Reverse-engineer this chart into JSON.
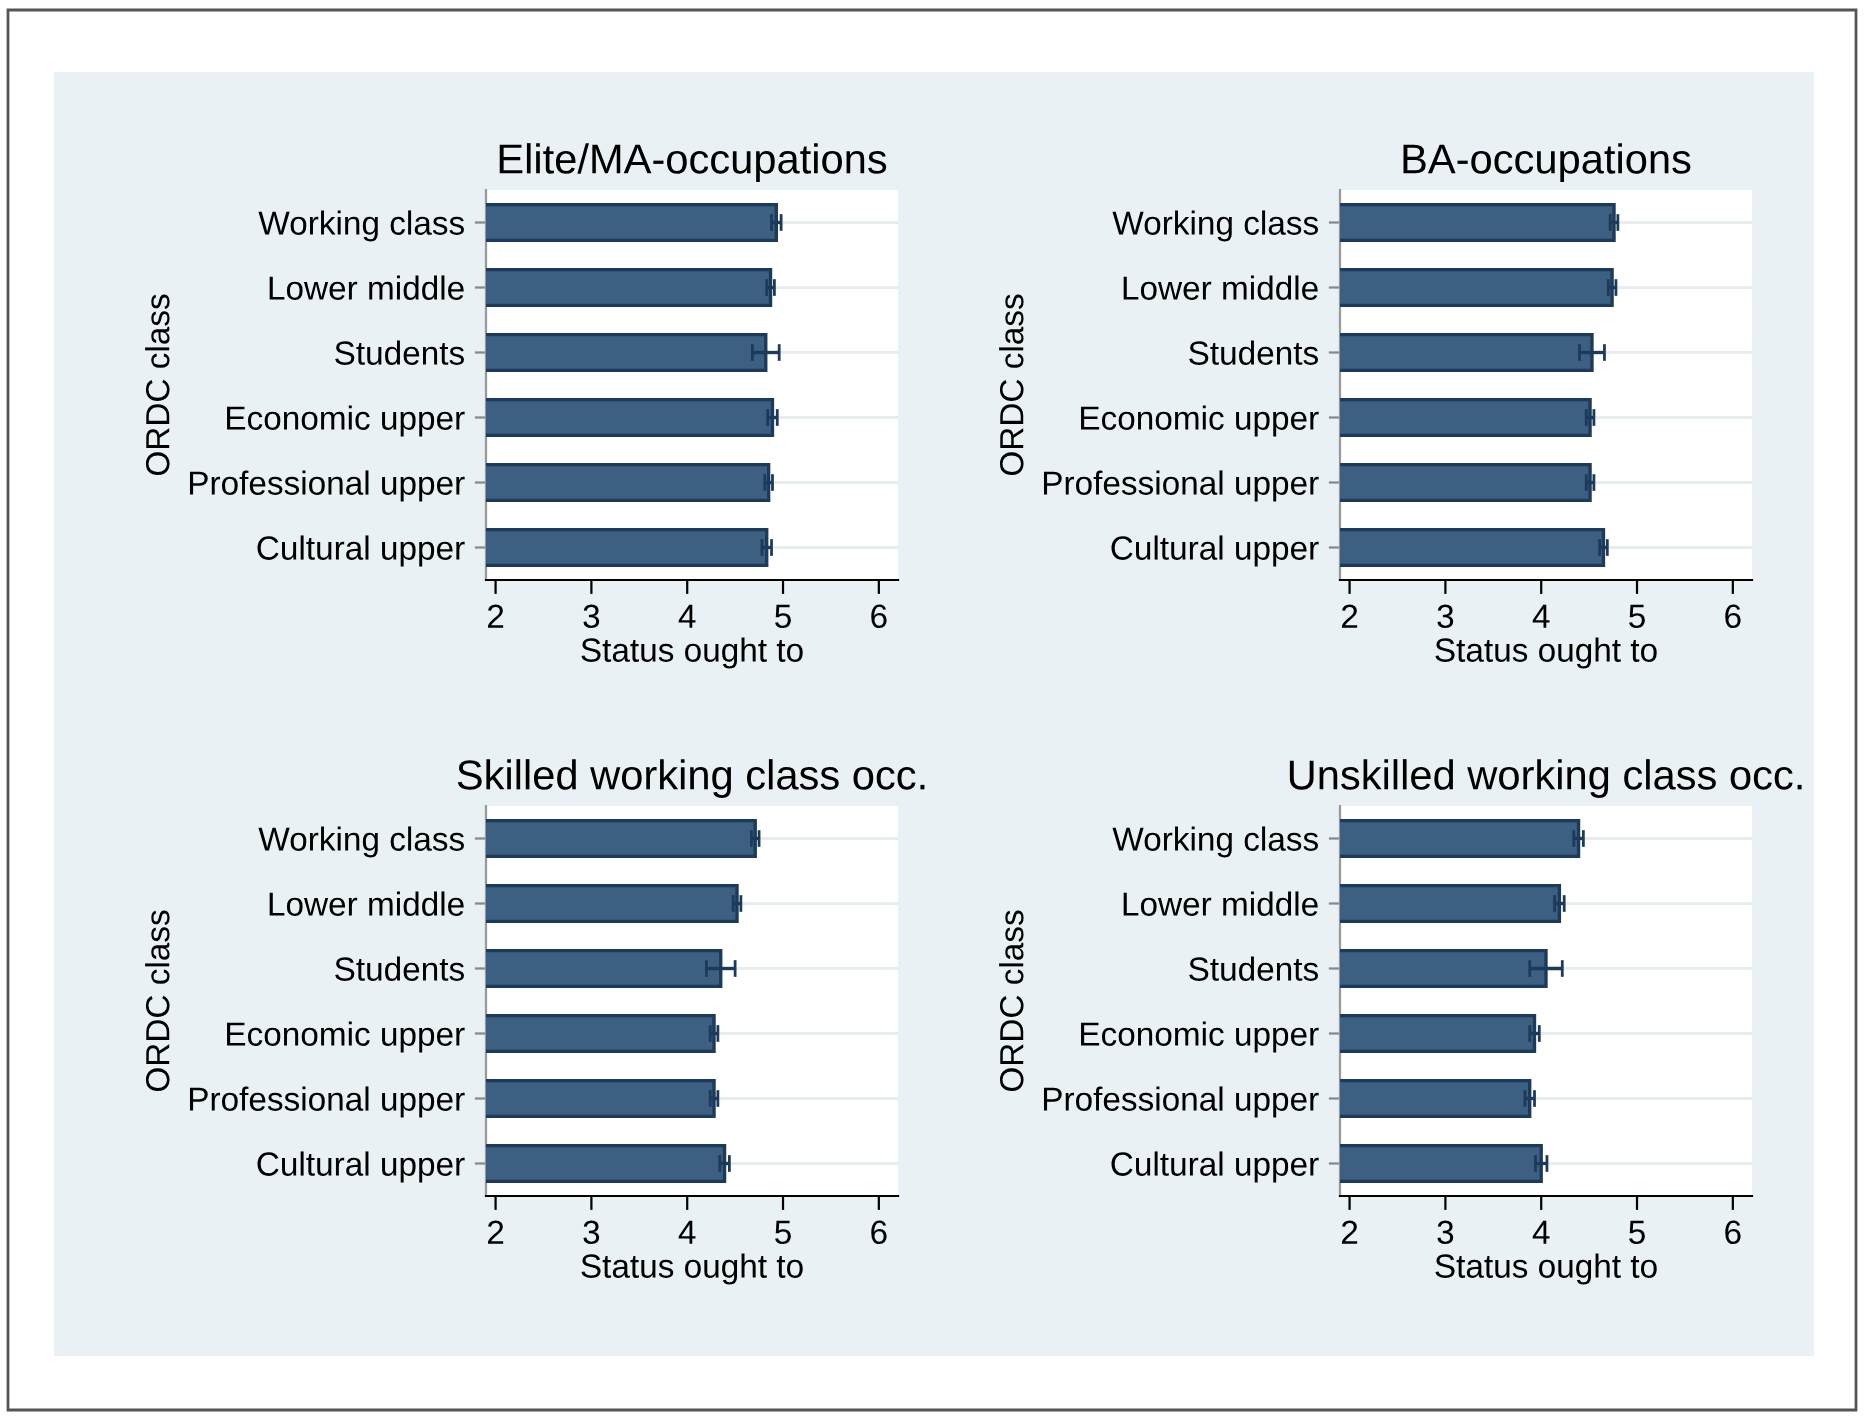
{
  "chart_data": [
    {
      "type": "bar",
      "orientation": "horizontal",
      "title": "Elite/MA-occupations",
      "xlabel": "Status ought to",
      "ylabel": "ORDC class",
      "categories": [
        "Working class",
        "Lower middle",
        "Students",
        "Economic upper",
        "Professional upper",
        "Cultural upper"
      ],
      "values": [
        4.93,
        4.87,
        4.82,
        4.89,
        4.85,
        4.83
      ],
      "errors": [
        0.05,
        0.04,
        0.14,
        0.05,
        0.04,
        0.05
      ],
      "color": "#3d5f81",
      "xlim": [
        1.9,
        6.2
      ],
      "xticks": [
        2,
        3,
        4,
        5,
        6
      ],
      "grid": "y"
    },
    {
      "type": "bar",
      "orientation": "horizontal",
      "title": "BA-occupations",
      "xlabel": "Status ought to",
      "ylabel": "ORDC class",
      "categories": [
        "Working class",
        "Lower middle",
        "Students",
        "Economic upper",
        "Professional upper",
        "Cultural upper"
      ],
      "values": [
        4.76,
        4.74,
        4.53,
        4.51,
        4.51,
        4.65
      ],
      "errors": [
        0.04,
        0.04,
        0.13,
        0.04,
        0.04,
        0.04
      ],
      "color": "#3d5f81",
      "xlim": [
        1.9,
        6.2
      ],
      "xticks": [
        2,
        3,
        4,
        5,
        6
      ],
      "grid": "y"
    },
    {
      "type": "bar",
      "orientation": "horizontal",
      "title": "Skilled working class occ.",
      "xlabel": "Status ought to",
      "ylabel": "ORDC class",
      "categories": [
        "Working class",
        "Lower middle",
        "Students",
        "Economic upper",
        "Professional upper",
        "Cultural upper"
      ],
      "values": [
        4.71,
        4.52,
        4.35,
        4.28,
        4.28,
        4.39
      ],
      "errors": [
        0.04,
        0.04,
        0.15,
        0.04,
        0.04,
        0.05
      ],
      "color": "#3d5f81",
      "xlim": [
        1.9,
        6.2
      ],
      "xticks": [
        2,
        3,
        4,
        5,
        6
      ],
      "grid": "y"
    },
    {
      "type": "bar",
      "orientation": "horizontal",
      "title": "Unskilled working class occ.",
      "xlabel": "Status ought to",
      "ylabel": "ORDC class",
      "categories": [
        "Working class",
        "Lower middle",
        "Students",
        "Economic upper",
        "Professional upper",
        "Cultural upper"
      ],
      "values": [
        4.39,
        4.19,
        4.05,
        3.93,
        3.88,
        4.0
      ],
      "errors": [
        0.05,
        0.05,
        0.17,
        0.05,
        0.05,
        0.06
      ],
      "color": "#3d5f81",
      "xlim": [
        1.9,
        6.2
      ],
      "xticks": [
        2,
        3,
        4,
        5,
        6
      ],
      "grid": "y"
    }
  ]
}
